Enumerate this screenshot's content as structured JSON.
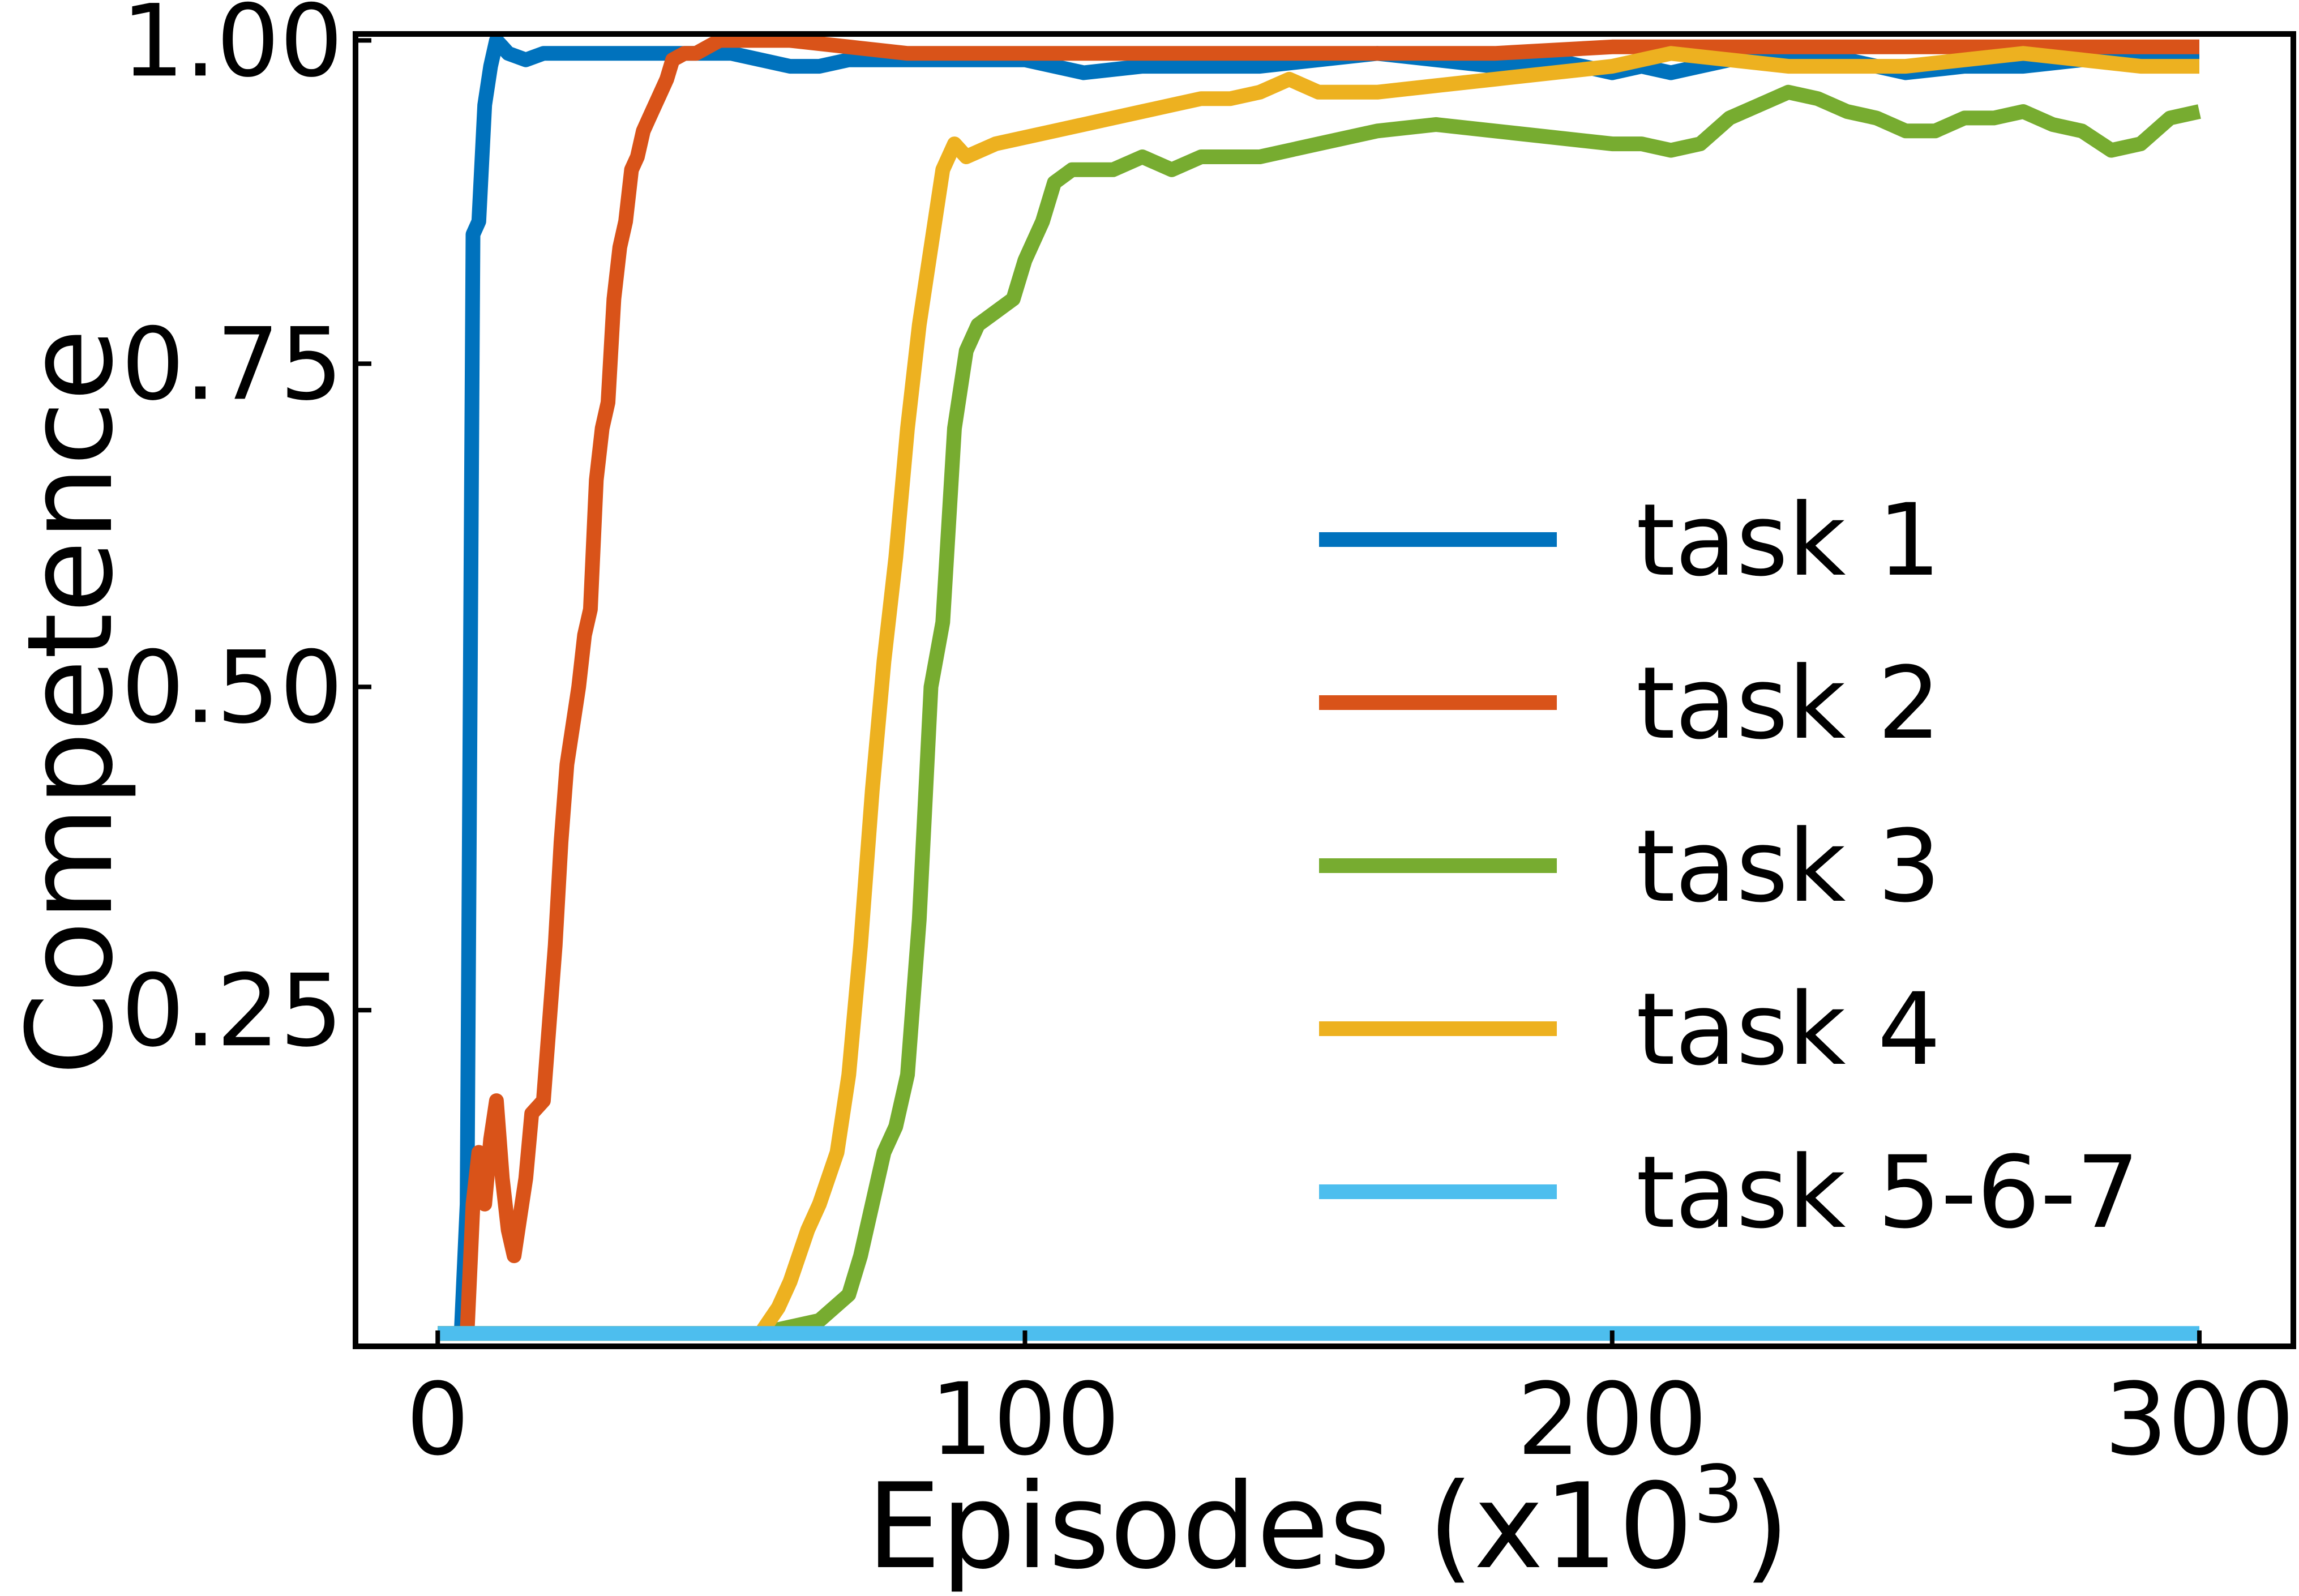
{
  "chart_data": {
    "type": "line",
    "xlabel": "Episodes (x10",
    "xlabel_exponent": "3",
    "xlabel_close": ")",
    "ylabel": "Competence",
    "xlim": [
      -14,
      316
    ],
    "ylim": [
      -0.01,
      1.005
    ],
    "xticks": [
      0,
      100,
      200,
      300
    ],
    "xtick_labels": [
      "0",
      "100",
      "200",
      "300"
    ],
    "yticks": [
      0.25,
      0.5,
      0.75,
      1.0
    ],
    "ytick_labels": [
      "0.25",
      "0.50",
      "0.75",
      "1.00"
    ],
    "grid": false,
    "legend_position": "center-right",
    "series": [
      {
        "name": "task 1",
        "color": "#0072BD",
        "x": [
          0,
          4,
          5,
          6,
          7,
          8,
          9,
          10,
          11,
          12,
          15,
          18,
          22,
          30,
          40,
          50,
          55,
          60,
          65,
          70,
          75,
          80,
          90,
          100,
          110,
          120,
          130,
          140,
          150,
          160,
          170,
          180,
          190,
          195,
          200,
          205,
          210,
          215,
          220,
          230,
          240,
          250,
          260,
          270,
          280,
          290,
          300
        ],
        "y": [
          0,
          0,
          0.1,
          0.85,
          0.86,
          0.95,
          0.98,
          1.0,
          0.995,
          0.99,
          0.985,
          0.99,
          0.99,
          0.99,
          0.99,
          0.99,
          0.985,
          0.98,
          0.98,
          0.985,
          0.985,
          0.985,
          0.985,
          0.985,
          0.975,
          0.98,
          0.98,
          0.98,
          0.985,
          0.99,
          0.985,
          0.98,
          0.985,
          0.98,
          0.975,
          0.98,
          0.975,
          0.98,
          0.985,
          0.99,
          0.985,
          0.975,
          0.98,
          0.98,
          0.985,
          0.985,
          0.985
        ]
      },
      {
        "name": "task 2",
        "color": "#D95319",
        "x": [
          0,
          4,
          5,
          6,
          7,
          8,
          9,
          10,
          11,
          12,
          13,
          14,
          15,
          16,
          18,
          20,
          21,
          22,
          24,
          25,
          26,
          27,
          28,
          29,
          30,
          31,
          32,
          33,
          34,
          35,
          36,
          37,
          38,
          39,
          40,
          42,
          44,
          46,
          48,
          50,
          55,
          60,
          70,
          80,
          100,
          120,
          150,
          180,
          200,
          250,
          300
        ],
        "y": [
          0,
          0,
          0,
          0.1,
          0.14,
          0.1,
          0.15,
          0.18,
          0.12,
          0.08,
          0.06,
          0.09,
          0.12,
          0.17,
          0.18,
          0.3,
          0.38,
          0.44,
          0.5,
          0.54,
          0.56,
          0.66,
          0.7,
          0.72,
          0.8,
          0.84,
          0.86,
          0.9,
          0.91,
          0.93,
          0.94,
          0.95,
          0.96,
          0.97,
          0.985,
          0.99,
          0.99,
          0.995,
          1.0,
          1.0,
          1.0,
          1.0,
          0.995,
          0.99,
          0.99,
          0.99,
          0.99,
          0.99,
          0.995,
          0.995,
          0.995
        ]
      },
      {
        "name": "task 3",
        "color": "#77AC30",
        "x": [
          0,
          55,
          65,
          70,
          72,
          74,
          76,
          78,
          80,
          82,
          84,
          86,
          88,
          90,
          92,
          95,
          98,
          100,
          103,
          105,
          108,
          110,
          115,
          120,
          125,
          130,
          140,
          150,
          160,
          170,
          180,
          190,
          200,
          205,
          210,
          215,
          220,
          225,
          230,
          235,
          240,
          245,
          250,
          255,
          260,
          265,
          270,
          275,
          280,
          285,
          290,
          295,
          300
        ],
        "y": [
          0,
          0,
          0.01,
          0.03,
          0.06,
          0.1,
          0.14,
          0.16,
          0.2,
          0.32,
          0.5,
          0.55,
          0.7,
          0.76,
          0.78,
          0.79,
          0.8,
          0.83,
          0.86,
          0.89,
          0.9,
          0.9,
          0.9,
          0.91,
          0.9,
          0.91,
          0.91,
          0.92,
          0.93,
          0.935,
          0.93,
          0.925,
          0.92,
          0.92,
          0.915,
          0.92,
          0.94,
          0.95,
          0.96,
          0.955,
          0.945,
          0.94,
          0.93,
          0.93,
          0.94,
          0.94,
          0.945,
          0.935,
          0.93,
          0.915,
          0.92,
          0.94,
          0.945
        ]
      },
      {
        "name": "task 4",
        "color": "#EDB120",
        "x": [
          0,
          55,
          58,
          60,
          63,
          65,
          68,
          70,
          72,
          74,
          76,
          78,
          80,
          82,
          84,
          86,
          88,
          90,
          95,
          100,
          105,
          110,
          115,
          120,
          125,
          130,
          135,
          140,
          145,
          150,
          155,
          160,
          170,
          180,
          190,
          200,
          210,
          220,
          230,
          240,
          250,
          260,
          270,
          280,
          290,
          300
        ],
        "y": [
          0,
          0,
          0.02,
          0.04,
          0.08,
          0.1,
          0.14,
          0.2,
          0.3,
          0.42,
          0.52,
          0.6,
          0.7,
          0.78,
          0.84,
          0.9,
          0.92,
          0.91,
          0.92,
          0.925,
          0.93,
          0.935,
          0.94,
          0.945,
          0.95,
          0.955,
          0.955,
          0.96,
          0.97,
          0.96,
          0.96,
          0.96,
          0.965,
          0.97,
          0.975,
          0.98,
          0.99,
          0.985,
          0.98,
          0.98,
          0.98,
          0.985,
          0.99,
          0.985,
          0.98,
          0.98
        ]
      },
      {
        "name": "task 5-6-7",
        "color": "#4DBEEE",
        "x": [
          0,
          300
        ],
        "y": [
          0,
          0
        ]
      }
    ]
  }
}
